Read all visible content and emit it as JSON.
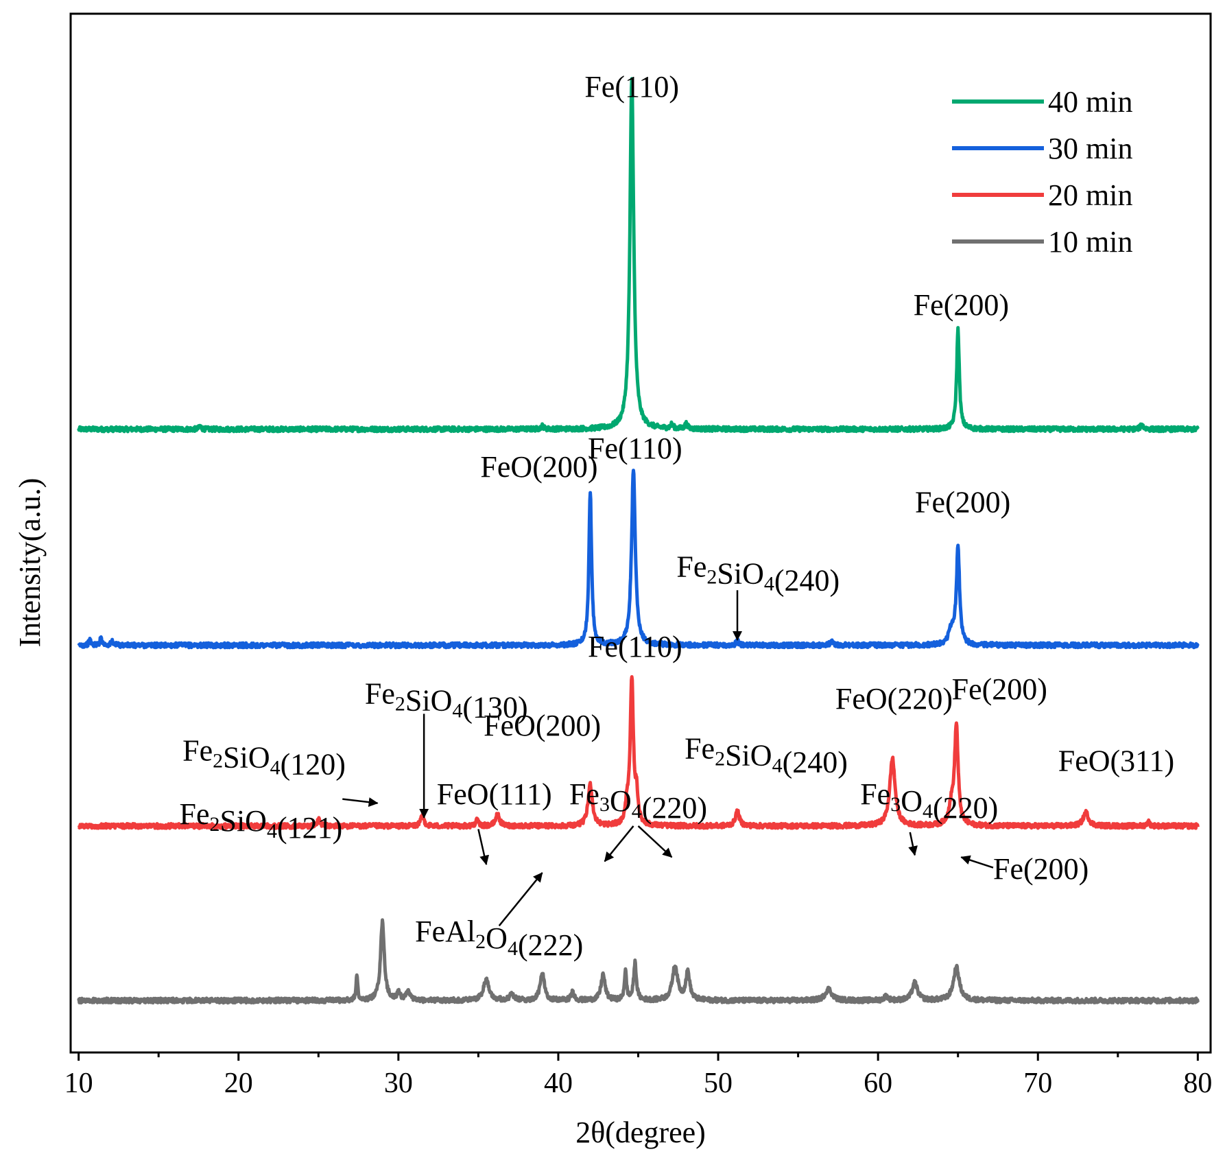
{
  "chart_data": {
    "type": "line",
    "title": "",
    "xlabel": "2θ(degree)",
    "ylabel": "Intensity(a.u.)",
    "xlim": [
      9.5,
      80.8
    ],
    "ylim": [
      0,
      100
    ],
    "y_ticks_shown": false,
    "x_ticks": [
      10,
      20,
      30,
      40,
      50,
      60,
      70,
      80
    ],
    "x_tick_labels": [
      "10",
      "20",
      "30",
      "40",
      "50",
      "60",
      "70",
      "80"
    ],
    "grid": false,
    "legend_position": "top-right",
    "legend": [
      "40 min",
      "30 min",
      "20 min",
      "10 min"
    ],
    "series": [
      {
        "name": "40 min",
        "color": "#00a870",
        "baseline": 60.0,
        "peaks": [
          {
            "x": 17.6,
            "h": 0.3,
            "w": 0.08
          },
          {
            "x": 39.0,
            "h": 0.3,
            "w": 0.1
          },
          {
            "x": 44.6,
            "h": 33.8,
            "w": 0.14
          },
          {
            "x": 47.1,
            "h": 0.4,
            "w": 0.1
          },
          {
            "x": 48.0,
            "h": 0.5,
            "w": 0.1
          },
          {
            "x": 65.0,
            "h": 9.6,
            "w": 0.1
          },
          {
            "x": 76.5,
            "h": 0.4,
            "w": 0.12
          }
        ]
      },
      {
        "name": "30 min",
        "color": "#1460dc",
        "baseline": 39.2,
        "peaks": [
          {
            "x": 10.7,
            "h": 0.5,
            "w": 0.08
          },
          {
            "x": 11.4,
            "h": 0.7,
            "w": 0.08
          },
          {
            "x": 12.1,
            "h": 0.4,
            "w": 0.08
          },
          {
            "x": 42.0,
            "h": 14.8,
            "w": 0.1
          },
          {
            "x": 44.7,
            "h": 16.8,
            "w": 0.14
          },
          {
            "x": 51.2,
            "h": 0.4,
            "w": 0.1
          },
          {
            "x": 57.1,
            "h": 0.4,
            "w": 0.12
          },
          {
            "x": 64.6,
            "h": 1.5,
            "w": 0.2
          },
          {
            "x": 65.0,
            "h": 9.2,
            "w": 0.12
          }
        ]
      },
      {
        "name": "20 min",
        "color": "#f03c3c",
        "baseline": 21.8,
        "peaks": [
          {
            "x": 25.0,
            "h": 0.6,
            "w": 0.12
          },
          {
            "x": 31.5,
            "h": 1.0,
            "w": 0.12
          },
          {
            "x": 34.9,
            "h": 0.6,
            "w": 0.1
          },
          {
            "x": 36.2,
            "h": 1.1,
            "w": 0.15
          },
          {
            "x": 42.0,
            "h": 4.0,
            "w": 0.16
          },
          {
            "x": 44.3,
            "h": 1.8,
            "w": 0.1
          },
          {
            "x": 44.6,
            "h": 14.0,
            "w": 0.12
          },
          {
            "x": 44.9,
            "h": 2.6,
            "w": 0.1
          },
          {
            "x": 51.2,
            "h": 1.4,
            "w": 0.15
          },
          {
            "x": 60.9,
            "h": 6.5,
            "w": 0.2
          },
          {
            "x": 64.6,
            "h": 1.8,
            "w": 0.2
          },
          {
            "x": 64.9,
            "h": 9.4,
            "w": 0.13
          },
          {
            "x": 73.0,
            "h": 1.3,
            "w": 0.2
          },
          {
            "x": 76.9,
            "h": 0.4,
            "w": 0.1
          }
        ]
      },
      {
        "name": "10 min",
        "color": "#707070",
        "baseline": 5.0,
        "peaks": [
          {
            "x": 27.4,
            "h": 2.5,
            "w": 0.06
          },
          {
            "x": 29.0,
            "h": 7.6,
            "w": 0.14
          },
          {
            "x": 30.0,
            "h": 0.7,
            "w": 0.12
          },
          {
            "x": 30.6,
            "h": 1.0,
            "w": 0.12
          },
          {
            "x": 35.5,
            "h": 2.0,
            "w": 0.22
          },
          {
            "x": 37.1,
            "h": 0.6,
            "w": 0.15
          },
          {
            "x": 39.0,
            "h": 2.6,
            "w": 0.16
          },
          {
            "x": 40.9,
            "h": 0.8,
            "w": 0.12
          },
          {
            "x": 42.8,
            "h": 2.5,
            "w": 0.15
          },
          {
            "x": 44.2,
            "h": 2.8,
            "w": 0.08
          },
          {
            "x": 44.8,
            "h": 3.6,
            "w": 0.1
          },
          {
            "x": 47.3,
            "h": 3.3,
            "w": 0.2
          },
          {
            "x": 48.1,
            "h": 2.7,
            "w": 0.15
          },
          {
            "x": 56.9,
            "h": 1.1,
            "w": 0.25
          },
          {
            "x": 60.5,
            "h": 0.4,
            "w": 0.15
          },
          {
            "x": 62.3,
            "h": 1.7,
            "w": 0.2
          },
          {
            "x": 64.9,
            "h": 3.2,
            "w": 0.22
          }
        ]
      }
    ],
    "annotations": [
      {
        "id": "p40-fe110",
        "parts": [
          [
            "Fe(110)",
            ""
          ]
        ],
        "series": "40 min"
      },
      {
        "id": "p40-fe200",
        "parts": [
          [
            "Fe(200)",
            ""
          ]
        ],
        "series": "40 min"
      },
      {
        "id": "p30-fe110",
        "parts": [
          [
            "Fe(110)",
            ""
          ]
        ],
        "series": "30 min"
      },
      {
        "id": "p30-feo200",
        "parts": [
          [
            "FeO(200)",
            ""
          ]
        ],
        "series": "30 min"
      },
      {
        "id": "p30-fe200",
        "parts": [
          [
            "Fe(200)",
            ""
          ]
        ],
        "series": "30 min"
      },
      {
        "id": "p30-fe2sio4-240",
        "parts": [
          [
            "Fe",
            ""
          ],
          [
            "2",
            "sub"
          ],
          [
            "SiO",
            ""
          ],
          [
            "4",
            "sub"
          ],
          [
            "(240)",
            ""
          ]
        ],
        "series": "30 min"
      },
      {
        "id": "p20-fe110",
        "parts": [
          [
            "Fe(110)",
            ""
          ]
        ],
        "series": "20 min"
      },
      {
        "id": "p20-fe2sio4-130",
        "parts": [
          [
            "Fe",
            ""
          ],
          [
            "2",
            "sub"
          ],
          [
            "SiO",
            ""
          ],
          [
            "4",
            "sub"
          ],
          [
            "(130)",
            ""
          ]
        ],
        "series": "20 min"
      },
      {
        "id": "p20-fe2sio4-120",
        "parts": [
          [
            "Fe",
            ""
          ],
          [
            "2",
            "sub"
          ],
          [
            "SiO",
            ""
          ],
          [
            "4",
            "sub"
          ],
          [
            "(120)",
            ""
          ]
        ],
        "series": "20 min"
      },
      {
        "id": "p20-feo200",
        "parts": [
          [
            "FeO(200)",
            ""
          ]
        ],
        "series": "20 min"
      },
      {
        "id": "p20-fe2sio4-240",
        "parts": [
          [
            "Fe",
            ""
          ],
          [
            "2",
            "sub"
          ],
          [
            "SiO",
            ""
          ],
          [
            "4",
            "sub"
          ],
          [
            "(240)",
            ""
          ]
        ],
        "series": "20 min"
      },
      {
        "id": "p20-feo220",
        "parts": [
          [
            "FeO(220)",
            ""
          ]
        ],
        "series": "20 min"
      },
      {
        "id": "p20-fe200",
        "parts": [
          [
            "Fe(200)",
            ""
          ]
        ],
        "series": "20 min"
      },
      {
        "id": "p20-feo311",
        "parts": [
          [
            "FeO(311)",
            ""
          ]
        ],
        "series": "20 min"
      },
      {
        "id": "p10-fe2sio4-121",
        "parts": [
          [
            "Fe",
            ""
          ],
          [
            "2",
            "sub"
          ],
          [
            "SiO",
            ""
          ],
          [
            "4",
            "sub"
          ],
          [
            "(121)",
            ""
          ]
        ],
        "series": "10 min"
      },
      {
        "id": "p10-feo111",
        "parts": [
          [
            "FeO(111)",
            ""
          ]
        ],
        "series": "10 min"
      },
      {
        "id": "p10-fe3o4-220a",
        "parts": [
          [
            "Fe",
            ""
          ],
          [
            "3",
            "sub"
          ],
          [
            "O",
            ""
          ],
          [
            "4",
            "sub"
          ],
          [
            "(220)",
            ""
          ]
        ],
        "series": "10 min"
      },
      {
        "id": "p10-fe3o4-220b",
        "parts": [
          [
            "Fe",
            ""
          ],
          [
            "3",
            "sub"
          ],
          [
            "O",
            ""
          ],
          [
            "4",
            "sub"
          ],
          [
            "(220)",
            ""
          ]
        ],
        "series": "10 min"
      },
      {
        "id": "p10-fe200",
        "parts": [
          [
            "Fe(200)",
            ""
          ]
        ],
        "series": "10 min"
      },
      {
        "id": "p10-feal2o4-222",
        "parts": [
          [
            "FeAl",
            ""
          ],
          [
            "2",
            "sub"
          ],
          [
            "O",
            ""
          ],
          [
            "4",
            "sub"
          ],
          [
            "(222)",
            ""
          ]
        ],
        "series": "10 min"
      }
    ]
  }
}
